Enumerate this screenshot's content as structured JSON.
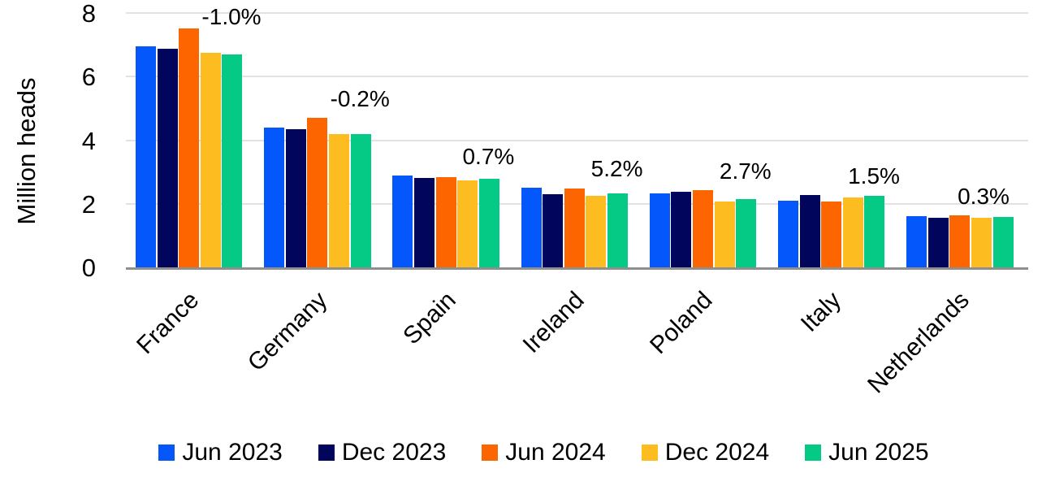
{
  "chart_data": {
    "type": "bar",
    "title": "",
    "xlabel": "",
    "ylabel": "Million heads",
    "ylim": [
      0,
      8
    ],
    "yticks": [
      0,
      2,
      4,
      6,
      8
    ],
    "grid": true,
    "legend_position": "bottom",
    "categories": [
      "France",
      "Germany",
      "Spain",
      "Ireland",
      "Poland",
      "Italy",
      "Netherlands"
    ],
    "series": [
      {
        "name": "Jun 2023",
        "color": "#0458FB",
        "values": [
          6.95,
          4.4,
          2.88,
          2.5,
          2.32,
          2.1,
          1.62
        ]
      },
      {
        "name": "Dec 2023",
        "color": "#02055C",
        "values": [
          6.88,
          4.34,
          2.81,
          2.3,
          2.37,
          2.27,
          1.57
        ]
      },
      {
        "name": "Jun 2024",
        "color": "#FD6500",
        "values": [
          7.52,
          4.7,
          2.83,
          2.48,
          2.44,
          2.07,
          1.64
        ]
      },
      {
        "name": "Dec 2024",
        "color": "#FDBD20",
        "values": [
          6.76,
          4.2,
          2.74,
          2.24,
          2.08,
          2.2,
          1.55
        ]
      },
      {
        "name": "Jun 2025",
        "color": "#04CA86",
        "values": [
          6.7,
          4.2,
          2.78,
          2.34,
          2.15,
          2.25,
          1.58
        ]
      }
    ],
    "annotations": [
      "-1.0%",
      "-0.2%",
      "0.7%",
      "5.2%",
      "2.7%",
      "1.5%",
      "0.3%"
    ]
  },
  "colors": {
    "gridline": "#e2e2e2",
    "axis_line": "#8f8f8f",
    "text": "#000000",
    "background": "#ffffff"
  }
}
